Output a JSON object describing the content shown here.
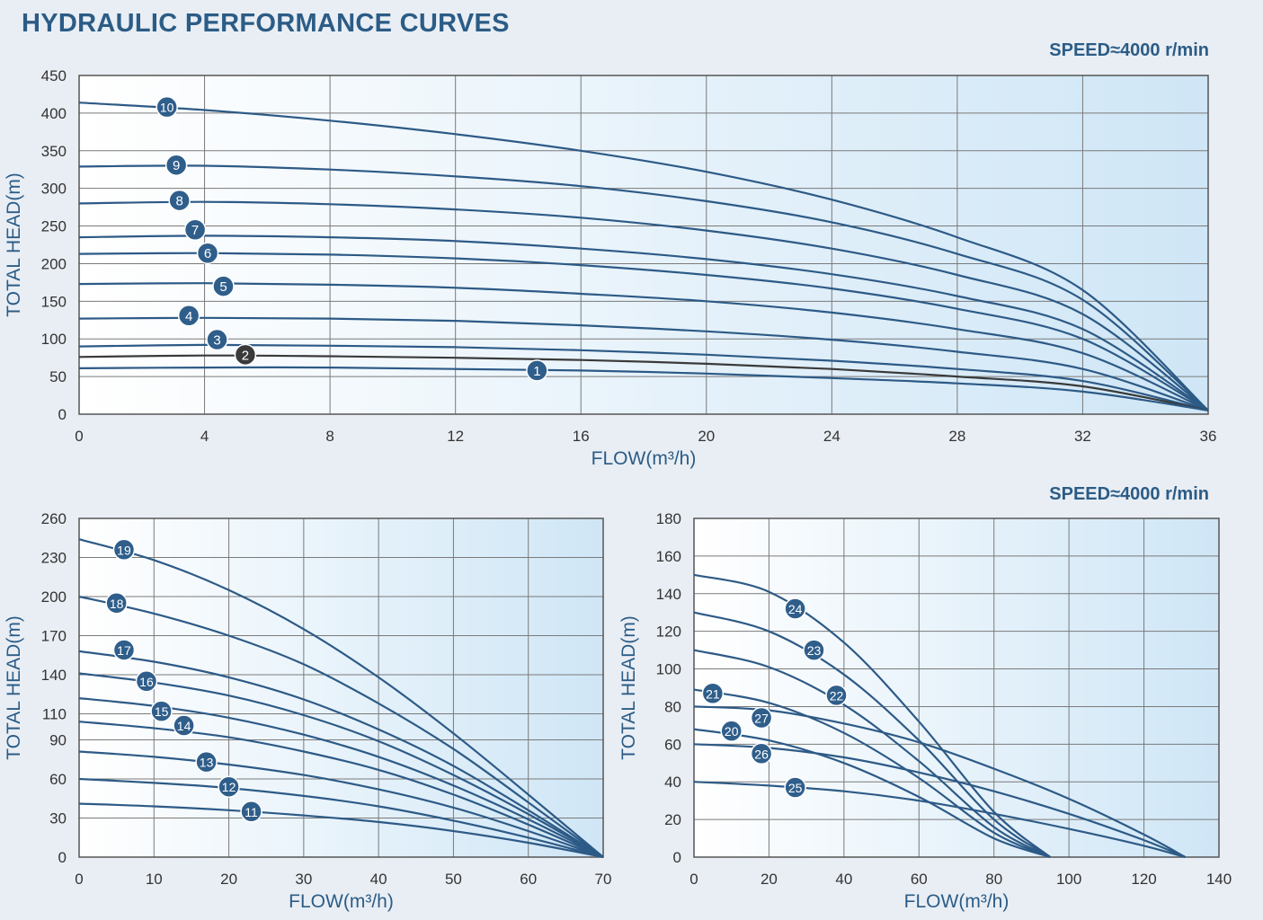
{
  "page": {
    "title": "HYDRAULIC PERFORMANCE CURVES",
    "speed_label": "SPEED≈4000 r/min"
  },
  "chart_data": [
    {
      "type": "line",
      "xlabel": "FLOW(m³/h)",
      "ylabel": "TOTAL HEAD(m)",
      "xlim": [
        0,
        36
      ],
      "ylim": [
        0,
        450
      ],
      "xticks": [
        0,
        4,
        8,
        12,
        16,
        20,
        24,
        28,
        32,
        36
      ],
      "yticks": [
        0,
        50,
        100,
        150,
        200,
        250,
        300,
        350,
        400,
        450
      ],
      "grid": true,
      "background": "gradient light blue",
      "series": [
        {
          "name": "10",
          "x": [
            0,
            4,
            8,
            12,
            16,
            20,
            24,
            28,
            32,
            36
          ],
          "y": [
            414,
            404,
            390,
            372,
            350,
            322,
            285,
            235,
            165,
            5
          ],
          "label_at": [
            2.8,
            408
          ]
        },
        {
          "name": "9",
          "x": [
            0,
            4,
            8,
            12,
            16,
            20,
            24,
            28,
            32,
            36
          ],
          "y": [
            329,
            330,
            325,
            316,
            303,
            283,
            255,
            213,
            152,
            5
          ],
          "label_at": [
            3.1,
            331
          ]
        },
        {
          "name": "8",
          "x": [
            0,
            4,
            8,
            12,
            16,
            20,
            24,
            28,
            32,
            36
          ],
          "y": [
            280,
            282,
            279,
            272,
            261,
            244,
            220,
            185,
            133,
            5
          ],
          "label_at": [
            3.2,
            284
          ]
        },
        {
          "name": "7",
          "x": [
            0,
            4,
            8,
            12,
            16,
            20,
            24,
            28,
            32,
            36
          ],
          "y": [
            235,
            237,
            235,
            230,
            220,
            206,
            186,
            157,
            113,
            5
          ],
          "label_at": [
            3.7,
            245
          ]
        },
        {
          "name": "6",
          "x": [
            0,
            4,
            8,
            12,
            16,
            20,
            24,
            28,
            32,
            36
          ],
          "y": [
            213,
            214,
            212,
            207,
            198,
            185,
            167,
            140,
            100,
            5
          ],
          "label_at": [
            4.1,
            214
          ]
        },
        {
          "name": "5",
          "x": [
            0,
            4,
            8,
            12,
            16,
            20,
            24,
            28,
            32,
            36
          ],
          "y": [
            173,
            174,
            172,
            168,
            160,
            150,
            135,
            113,
            81,
            5
          ],
          "label_at": [
            4.6,
            170
          ]
        },
        {
          "name": "4",
          "x": [
            0,
            4,
            8,
            12,
            16,
            20,
            24,
            28,
            32,
            36
          ],
          "y": [
            127,
            128,
            127,
            124,
            118,
            110,
            99,
            83,
            60,
            5
          ],
          "label_at": [
            3.5,
            131
          ]
        },
        {
          "name": "3",
          "x": [
            0,
            4,
            8,
            12,
            16,
            20,
            24,
            28,
            32,
            36
          ],
          "y": [
            90,
            92,
            91,
            89,
            85,
            79,
            71,
            60,
            44,
            5
          ],
          "label_at": [
            4.4,
            99
          ]
        },
        {
          "name": "2",
          "x": [
            0,
            4,
            8,
            12,
            16,
            20,
            24,
            28,
            32,
            36
          ],
          "y": [
            76,
            78,
            77,
            75,
            72,
            67,
            60,
            50,
            37,
            5
          ],
          "label_at": [
            5.3,
            79
          ],
          "color": "#3a3a3a"
        },
        {
          "name": "1",
          "x": [
            0,
            4,
            8,
            12,
            16,
            20,
            24,
            28,
            32,
            36
          ],
          "y": [
            61,
            62,
            62,
            60,
            58,
            54,
            48,
            41,
            30,
            5
          ],
          "label_at": [
            14.6,
            58
          ]
        }
      ]
    },
    {
      "type": "line",
      "xlabel": "FLOW(m³/h)",
      "ylabel": "TOTAL HEAD(m)",
      "xlim": [
        0,
        70
      ],
      "ylim": [
        0,
        260
      ],
      "xticks": [
        0,
        10,
        20,
        30,
        40,
        50,
        60,
        70
      ],
      "yticks": [
        0,
        30,
        60,
        90,
        110,
        140,
        170,
        200,
        230,
        260
      ],
      "grid": true,
      "series": [
        {
          "name": "19",
          "x": [
            0,
            10,
            20,
            30,
            40,
            50,
            60,
            70
          ],
          "y": [
            244,
            228,
            205,
            175,
            138,
            95,
            48,
            0
          ],
          "label_at": [
            6,
            236
          ]
        },
        {
          "name": "18",
          "x": [
            0,
            10,
            20,
            30,
            40,
            50,
            60,
            70
          ],
          "y": [
            200,
            187,
            170,
            148,
            118,
            83,
            42,
            0
          ],
          "label_at": [
            5,
            195
          ]
        },
        {
          "name": "17",
          "x": [
            0,
            10,
            20,
            30,
            40,
            50,
            60,
            70
          ],
          "y": [
            158,
            150,
            138,
            121,
            98,
            70,
            36,
            0
          ],
          "label_at": [
            6,
            159
          ]
        },
        {
          "name": "16",
          "x": [
            0,
            10,
            20,
            30,
            40,
            50,
            60,
            70
          ],
          "y": [
            141,
            134,
            124,
            109,
            89,
            63,
            33,
            0
          ],
          "label_at": [
            9,
            135
          ]
        },
        {
          "name": "15",
          "x": [
            0,
            10,
            20,
            30,
            40,
            50,
            60,
            70
          ],
          "y": [
            122,
            116,
            107,
            94,
            77,
            55,
            29,
            0
          ],
          "label_at": [
            11,
            112
          ]
        },
        {
          "name": "14",
          "x": [
            0,
            10,
            20,
            30,
            40,
            50,
            60,
            70
          ],
          "y": [
            104,
            99,
            92,
            81,
            67,
            48,
            25,
            0
          ],
          "label_at": [
            14,
            101
          ]
        },
        {
          "name": "13",
          "x": [
            0,
            10,
            20,
            30,
            40,
            50,
            60,
            70
          ],
          "y": [
            81,
            77,
            71,
            63,
            52,
            38,
            20,
            0
          ],
          "label_at": [
            17,
            73
          ]
        },
        {
          "name": "12",
          "x": [
            0,
            10,
            20,
            30,
            40,
            50,
            60,
            70
          ],
          "y": [
            60,
            57,
            53,
            47,
            39,
            28,
            15,
            0
          ],
          "label_at": [
            20,
            54
          ]
        },
        {
          "name": "11",
          "x": [
            0,
            10,
            20,
            30,
            40,
            50,
            60,
            70
          ],
          "y": [
            41,
            39,
            36,
            32,
            27,
            20,
            11,
            0
          ],
          "label_at": [
            23,
            35
          ]
        }
      ]
    },
    {
      "type": "line",
      "xlabel": "FLOW(m³/h)",
      "ylabel": "TOTAL HEAD(m)",
      "xlim": [
        0,
        140
      ],
      "ylim": [
        0,
        180
      ],
      "xticks": [
        0,
        20,
        40,
        60,
        80,
        100,
        120,
        140
      ],
      "yticks": [
        0,
        20,
        40,
        60,
        80,
        100,
        120,
        140,
        160,
        180
      ],
      "grid": true,
      "series": [
        {
          "name": "24",
          "x": [
            0,
            20,
            40,
            60,
            80,
            95
          ],
          "y": [
            150,
            141,
            114,
            72,
            24,
            0
          ],
          "label_at": [
            27,
            132
          ]
        },
        {
          "name": "23",
          "x": [
            0,
            20,
            40,
            60,
            80,
            95
          ],
          "y": [
            130,
            120,
            97,
            62,
            20,
            0
          ],
          "label_at": [
            32,
            110
          ]
        },
        {
          "name": "22",
          "x": [
            0,
            20,
            40,
            60,
            80,
            95
          ],
          "y": [
            110,
            101,
            81,
            51,
            16,
            0
          ],
          "label_at": [
            38,
            86
          ]
        },
        {
          "name": "21",
          "x": [
            0,
            20,
            40,
            60,
            80,
            95
          ],
          "y": [
            89,
            82,
            66,
            42,
            13,
            0
          ],
          "label_at": [
            5,
            87
          ]
        },
        {
          "name": "20",
          "x": [
            0,
            20,
            40,
            60,
            80,
            95
          ],
          "y": [
            68,
            62,
            50,
            32,
            10,
            0
          ],
          "label_at": [
            10,
            67
          ]
        },
        {
          "name": "27",
          "x": [
            0,
            20,
            40,
            60,
            80,
            100,
            120,
            131
          ],
          "y": [
            80,
            78,
            71,
            61,
            47,
            31,
            12,
            0
          ],
          "label_at": [
            18,
            74
          ]
        },
        {
          "name": "26",
          "x": [
            0,
            20,
            40,
            60,
            80,
            100,
            120,
            131
          ],
          "y": [
            60,
            58,
            53,
            45,
            35,
            23,
            9,
            0
          ],
          "label_at": [
            18,
            55
          ]
        },
        {
          "name": "25",
          "x": [
            0,
            20,
            40,
            60,
            80,
            100,
            120,
            131
          ],
          "y": [
            40,
            38,
            35,
            30,
            23,
            15,
            6,
            0
          ],
          "label_at": [
            27,
            37
          ]
        }
      ]
    }
  ],
  "style": {
    "curve_color": "#2d5a86",
    "label_fill": "#2f5e8b",
    "grid_color": "#7a7a7a",
    "text_color": "#2b5c86"
  }
}
